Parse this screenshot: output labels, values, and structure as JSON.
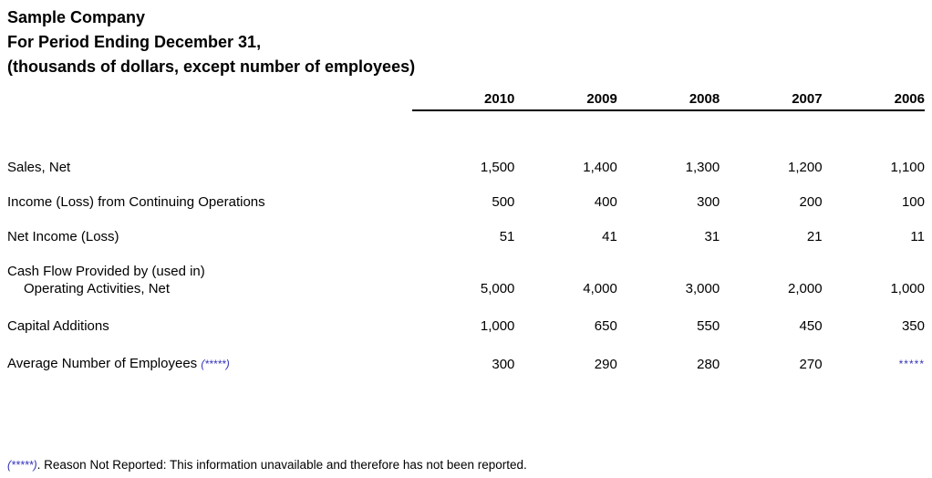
{
  "header": {
    "company": "Sample Company",
    "period": "For Period Ending December 31,",
    "units": "(thousands of dollars, except number of employees)"
  },
  "table": {
    "columns": [
      "2010",
      "2009",
      "2008",
      "2007",
      "2006"
    ],
    "rows": [
      {
        "label": "Sales, Net",
        "values": [
          "1,500",
          "1,400",
          "1,300",
          "1,200",
          "1,100"
        ]
      },
      {
        "label": "Income (Loss) from Continuing Operations",
        "values": [
          "500",
          "400",
          "300",
          "200",
          "100"
        ]
      },
      {
        "label": "Net Income (Loss)",
        "values": [
          "51",
          "41",
          "31",
          "21",
          "11"
        ]
      },
      {
        "label_line1": "Cash Flow Provided by (used in)",
        "label_line2": "Operating Activities, Net",
        "values": [
          "5,000",
          "4,000",
          "3,000",
          "2,000",
          "1,000"
        ]
      },
      {
        "label": "Capital Additions",
        "values": [
          "1,000",
          "650",
          "550",
          "450",
          "350"
        ]
      },
      {
        "label": "Average Number of Employees",
        "label_note": "(*****)",
        "values": [
          "300",
          "290",
          "280",
          "270",
          "*****"
        ]
      }
    ]
  },
  "footnote": {
    "marker": "(*****)",
    "text": ". Reason Not Reported: This information unavailable and therefore has not been reported."
  },
  "colors": {
    "text": "#000000",
    "note_blue": "#3333bb"
  }
}
